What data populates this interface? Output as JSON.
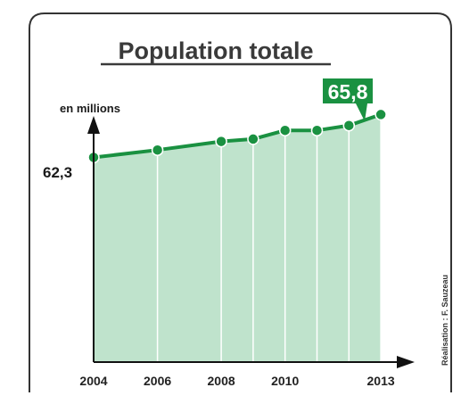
{
  "chart_data": {
    "type": "area",
    "title": "Population totale",
    "ylabel": "en millions",
    "x": [
      2004,
      2006,
      2008,
      2009,
      2010,
      2011,
      2012,
      2013
    ],
    "values": [
      62.3,
      62.9,
      63.6,
      63.8,
      64.5,
      64.5,
      64.9,
      65.8
    ],
    "xticks": [
      "2004",
      "2006",
      "2008",
      "2010",
      "2013"
    ],
    "first_value_label": "62,3",
    "last_value_label": "65,8",
    "ylim": [
      45.6,
      67.5
    ],
    "xlim": [
      2004,
      2014.2
    ],
    "grid": false,
    "colors": {
      "line": "#1a9141",
      "fill": "#bfe3cc",
      "marker": "#1a9141",
      "callout": "#1a9141",
      "frame": "#333333",
      "axis": "#111111"
    }
  },
  "credit": "Réalisation : F. Sauzeau"
}
